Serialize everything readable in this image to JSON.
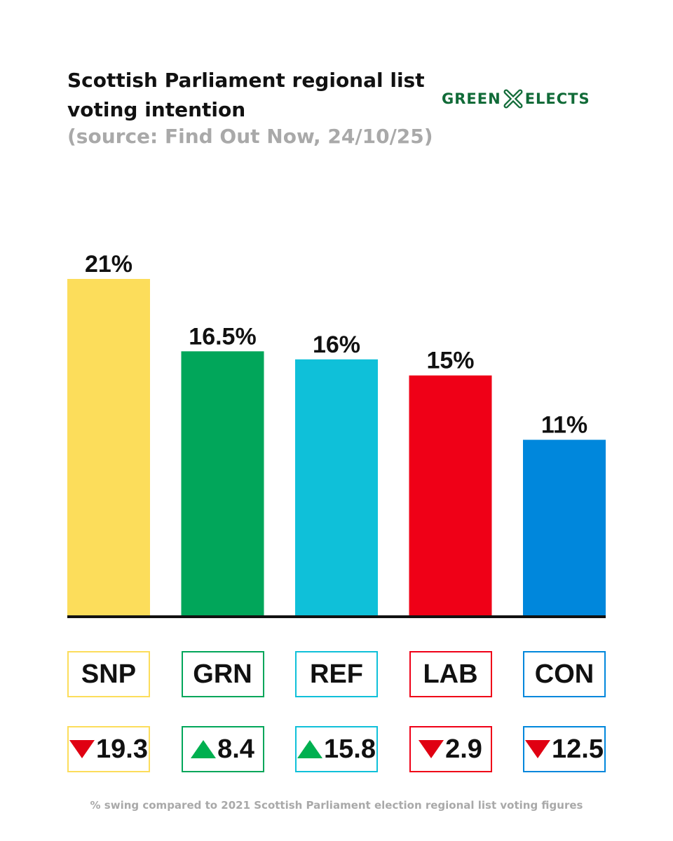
{
  "title_line1": "Scottish Parliament regional list",
  "title_line2": "voting intention",
  "subtitle": "(source: Find Out Now, 24/10/25)",
  "logo": {
    "left": "GREEN",
    "right": "ELECTS",
    "color": "#116b38",
    "icon": "cross-x-icon"
  },
  "footnote": "% swing compared to 2021 Scottish Parliament election regional list voting figures",
  "chart_data": {
    "type": "bar",
    "categories": [
      "SNP",
      "GRN",
      "REF",
      "LAB",
      "CON"
    ],
    "values": [
      21,
      16.5,
      16,
      15,
      11
    ],
    "value_labels": [
      "21%",
      "16.5%",
      "16%",
      "15%",
      "11%"
    ],
    "colors": [
      "#fcdd5b",
      "#01a65a",
      "#0fc0d9",
      "#ef0017",
      "#0087dc"
    ],
    "swing": [
      {
        "direction": "down",
        "value": "19.3"
      },
      {
        "direction": "up",
        "value": "8.4"
      },
      {
        "direction": "up",
        "value": "15.8"
      },
      {
        "direction": "down",
        "value": "2.9"
      },
      {
        "direction": "down",
        "value": "12.5"
      }
    ],
    "ylim": [
      0,
      21
    ]
  }
}
